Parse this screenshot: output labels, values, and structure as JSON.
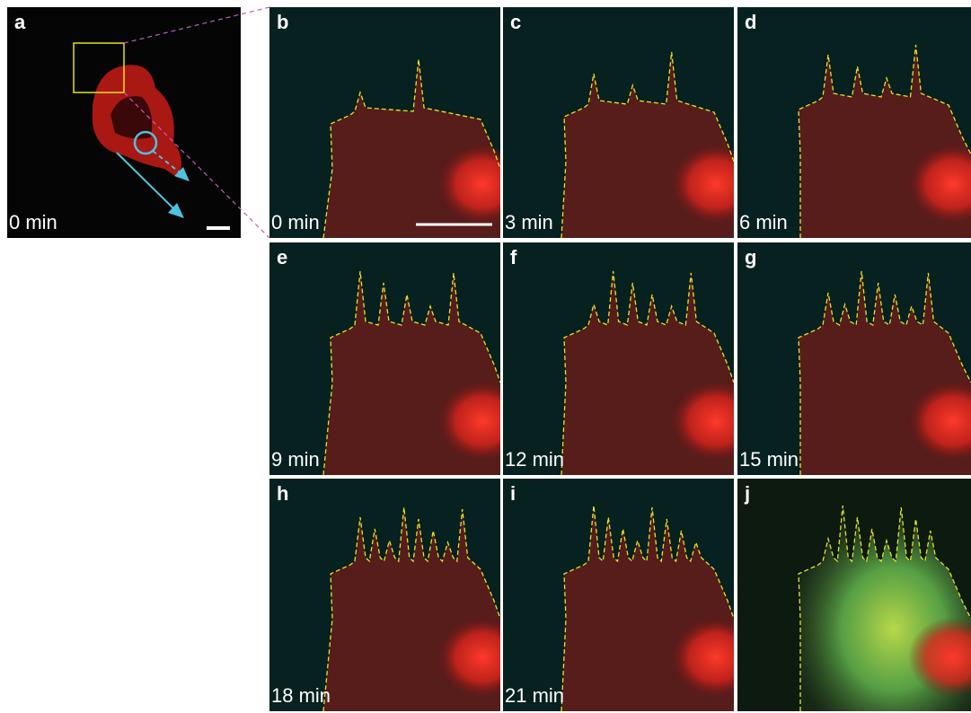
{
  "panels": [
    {
      "label": "a",
      "time": "0 min"
    },
    {
      "label": "b",
      "time": "0 min"
    },
    {
      "label": "c",
      "time": "3 min"
    },
    {
      "label": "d",
      "time": "6 min"
    },
    {
      "label": "e",
      "time": "9 min"
    },
    {
      "label": "f",
      "time": "12 min"
    },
    {
      "label": "g",
      "time": "15 min"
    },
    {
      "label": "h",
      "time": "18 min"
    },
    {
      "label": "i",
      "time": "21 min"
    },
    {
      "label": "j"
    }
  ]
}
